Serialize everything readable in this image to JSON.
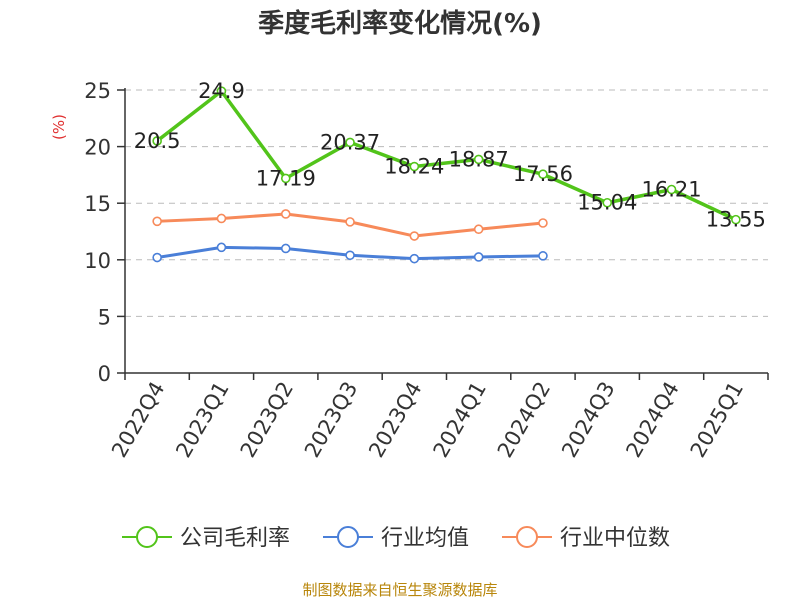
{
  "source_note": "制图数据来自恒生聚源数据库",
  "colors": {
    "series": [
      "#52c41a",
      "#4a7fd8",
      "#f78a5a"
    ],
    "axis": "#333333",
    "grid": "#bbbbbb",
    "ylabel": "#e03030",
    "source": "#b8860b"
  },
  "chart_data": {
    "type": "line",
    "title": "季度毛利率变化情况(%)",
    "ylabel": "(%)",
    "xlabel": "",
    "ylim": [
      0,
      25
    ],
    "yticks": [
      0,
      5,
      10,
      15,
      20,
      25
    ],
    "grid": true,
    "legend_position": "bottom",
    "categories": [
      "2022Q4",
      "2023Q1",
      "2023Q2",
      "2023Q3",
      "2023Q4",
      "2024Q1",
      "2024Q2",
      "2024Q3",
      "2024Q4",
      "2025Q1"
    ],
    "series": [
      {
        "name": "公司毛利率",
        "values": [
          20.5,
          24.9,
          17.19,
          20.37,
          18.24,
          18.87,
          17.56,
          15.04,
          16.21,
          13.55
        ],
        "labels": [
          "20.5",
          "24.9",
          "17.19",
          "20.37",
          "18.24",
          "18.87",
          "17.56",
          "15.04",
          "16.21",
          "13.55"
        ]
      },
      {
        "name": "行业均值",
        "values": [
          10.2,
          11.1,
          11.0,
          10.4,
          10.1,
          10.25,
          10.35,
          null,
          null,
          null
        ]
      },
      {
        "name": "行业中位数",
        "values": [
          13.4,
          13.65,
          14.05,
          13.35,
          12.1,
          12.7,
          13.25,
          null,
          null,
          null
        ]
      }
    ]
  }
}
